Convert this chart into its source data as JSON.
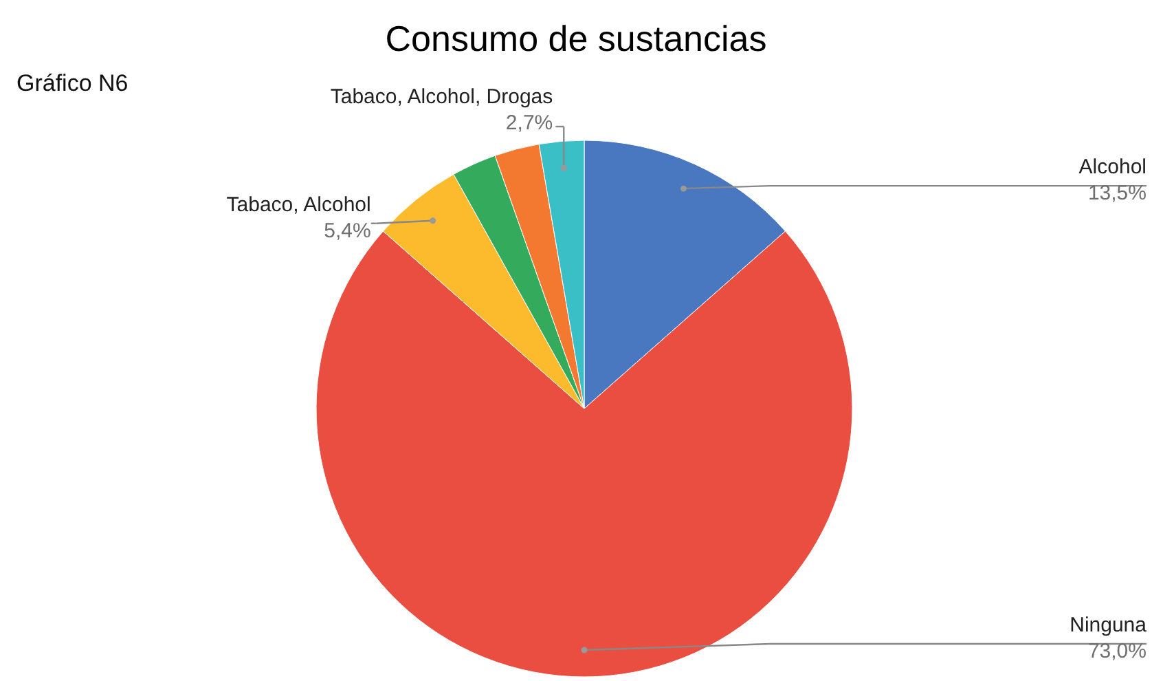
{
  "chart_data": {
    "type": "pie",
    "title": "Consumo de sustancias",
    "subtitle": "Gráfico N6",
    "categories": [
      "Alcohol",
      "Ninguna",
      "Tabaco, Alcohol",
      null,
      null,
      "Tabaco, Alcohol, Drogas"
    ],
    "values": [
      13.5,
      73.0,
      5.4,
      2.7,
      2.7,
      2.7
    ],
    "colors": [
      "#4a78c0",
      "#ea4e41",
      "#fbbb2c",
      "#33aa5c",
      "#f2792f",
      "#3bbfc6"
    ],
    "value_labels": [
      "13,5%",
      "73,0%",
      "5,4%",
      null,
      null,
      "2,7%"
    ],
    "legend": false
  }
}
